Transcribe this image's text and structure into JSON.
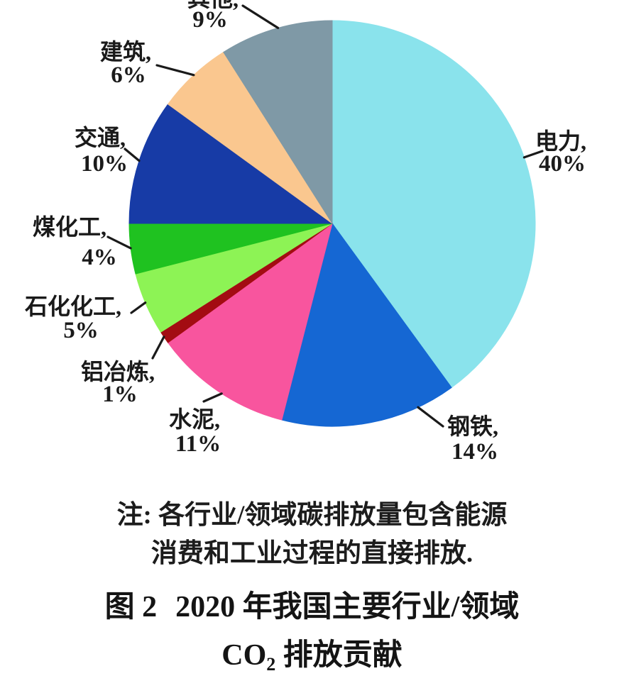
{
  "chart_data": {
    "type": "pie",
    "title": "图 2 2020 年我国主要行业/领域 CO2 排放贡献",
    "note": "注: 各行业/领域碳排放量包含能源消费和工业过程的直接排放.",
    "unit": "%",
    "direction": "clockwise",
    "start_angle_deg": 0,
    "legend_position": "outside-labels",
    "slices": [
      {
        "key": "electricity",
        "label": "电力",
        "value": 40,
        "display_name": "电力,",
        "display_pct": "40%",
        "color": "#8ae3ec"
      },
      {
        "key": "steel",
        "label": "钢铁",
        "value": 14,
        "display_name": "钢铁,",
        "display_pct": "14%",
        "color": "#1567d3"
      },
      {
        "key": "cement",
        "label": "水泥",
        "value": 11,
        "display_name": "水泥,",
        "display_pct": "11%",
        "color": "#f8559e"
      },
      {
        "key": "aluminum-smelting",
        "label": "铝冶炼",
        "value": 1,
        "display_name": "铝冶炼,",
        "display_pct": "1%",
        "color": "#a30c12"
      },
      {
        "key": "petrochemical",
        "label": "石化化工",
        "value": 5,
        "display_name": "石化化工,",
        "display_pct": "5%",
        "color": "#8df355"
      },
      {
        "key": "coal-chemical",
        "label": "煤化工",
        "value": 4,
        "display_name": "煤化工,",
        "display_pct": "4%",
        "color": "#1fc220"
      },
      {
        "key": "transport",
        "label": "交通",
        "value": 10,
        "display_name": "交通,",
        "display_pct": "10%",
        "color": "#173ba6"
      },
      {
        "key": "building",
        "label": "建筑",
        "value": 6,
        "display_name": "建筑,",
        "display_pct": "6%",
        "color": "#fac78f"
      },
      {
        "key": "others",
        "label": "其他",
        "value": 9,
        "display_name": "其他,",
        "display_pct": "9%",
        "color": "#7f99a6"
      }
    ],
    "colors": {
      "leader_line": "#1a1a1a",
      "text": "#1a1a1a",
      "background": "#ffffff"
    }
  },
  "figure": {
    "note_line1": "注: 各行业/领域碳排放量包含能源",
    "note_line2": "消费和工业过程的直接排放.",
    "caption_fig_label": "图 2",
    "caption_line1_rest": "2020 年我国主要行业/领域",
    "caption_co2_pre": "CO",
    "caption_co2_sub": "2",
    "caption_line2_rest": " 排放贡献"
  }
}
